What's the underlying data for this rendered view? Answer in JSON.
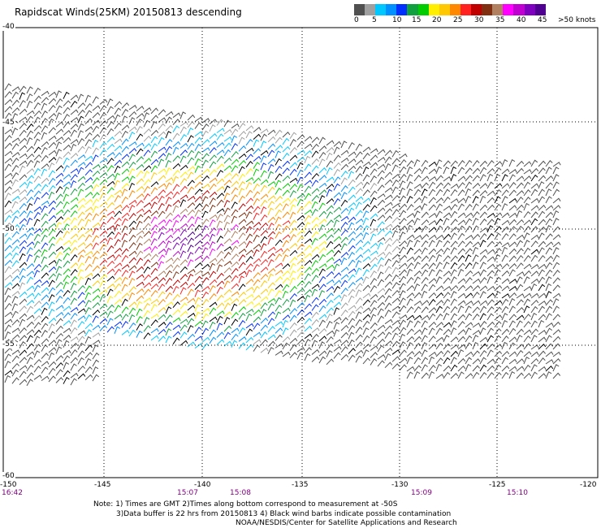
{
  "title": "Rapidscat Winds(25KM) 20150813 descending",
  "colorbar": {
    "colors": [
      "#505050",
      "#a0a0a0",
      "#00c8ff",
      "#0090ff",
      "#0030ff",
      "#10a040",
      "#00cc00",
      "#ffee00",
      "#ffc800",
      "#ff8800",
      "#ff2020",
      "#c00000",
      "#803010",
      "#b08060",
      "#ff00ff",
      "#c000d0",
      "#8000c0",
      "#500090"
    ],
    "labels": [
      "0",
      "5",
      "10",
      "15",
      "20",
      "25",
      "30",
      "35",
      "40",
      "45",
      ">50 knots"
    ]
  },
  "lat_labels": [
    "-40",
    "-45",
    "-50",
    "-55",
    "-60"
  ],
  "lon_labels": [
    "-150",
    "-145",
    "-140",
    "-135",
    "-130",
    "-125",
    "-120"
  ],
  "time_labels": [
    "16:42",
    "15:07",
    "15:08",
    "15:09",
    "15:10"
  ],
  "notes": [
    "Note: 1) Times are GMT 2)Times along bottom correspond to measurement at -50S",
    "3)Data buffer is 22 hrs from 20150813 4) Black wind barbs indicate possible contamination",
    "NOAA/NESDIS/Center for Satellite Applications and Research"
  ]
}
